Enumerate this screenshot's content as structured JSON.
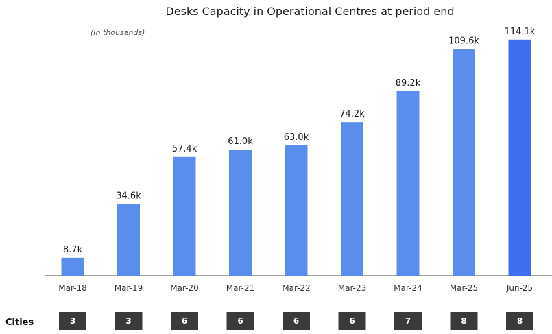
{
  "chart_data": {
    "type": "bar",
    "title": "Desks Capacity in Operational Centres at period end",
    "unit_note": "(In thousands)",
    "categories": [
      "Mar-18",
      "Mar-19",
      "Mar-20",
      "Mar-21",
      "Mar-22",
      "Mar-23",
      "Mar-24",
      "Mar-25",
      "Jun-25"
    ],
    "values": [
      8.7,
      34.6,
      57.4,
      61.0,
      63.0,
      74.2,
      89.2,
      109.6,
      114.1
    ],
    "value_labels": [
      "8.7k",
      "34.6k",
      "57.4k",
      "61.0k",
      "63.0k",
      "74.2k",
      "89.2k",
      "109.6k",
      "114.1k"
    ],
    "ylim": [
      0,
      120
    ],
    "grid": false,
    "xlabel": "",
    "ylabel": "",
    "cities_label": "Cities",
    "cities": [
      "3",
      "3",
      "6",
      "6",
      "6",
      "6",
      "7",
      "8",
      "8"
    ]
  },
  "colors": {
    "bar": "#5b8def",
    "bar_highlight": "#3d6ff0",
    "city_box": "#3a3a3a",
    "axis": "#444444"
  }
}
